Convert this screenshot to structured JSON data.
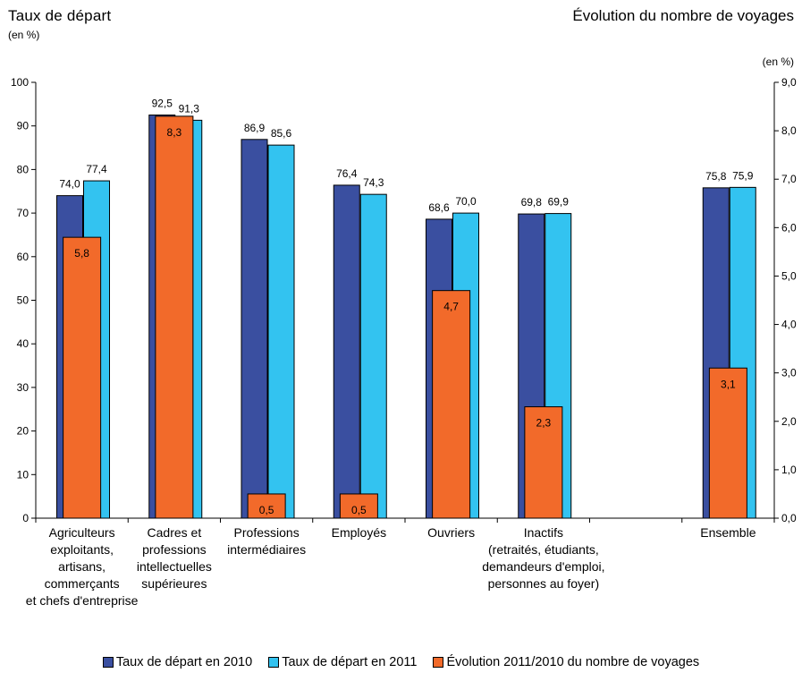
{
  "header": {
    "left_title": "Taux de départ",
    "left_unit": "(en %)",
    "right_title": "Évolution du nombre de voyages",
    "right_unit": "(en %)"
  },
  "colors": {
    "series_2010": "#3a4fa0",
    "series_2011": "#33c3f0",
    "series_evolution": "#f26a2a"
  },
  "chart_data": {
    "type": "bar",
    "categories": [
      [
        "Agriculteurs",
        "exploitants,",
        "artisans,",
        "commerçants",
        "et chefs d'entreprise"
      ],
      [
        "Cadres et",
        "professions",
        "intellectuelles",
        "supérieures"
      ],
      [
        "Professions",
        "intermédiaires"
      ],
      [
        "Employés"
      ],
      [
        "Ouvriers"
      ],
      [
        "Inactifs",
        "(retraités, étudiants,",
        "demandeurs d'emploi,",
        "personnes au foyer)"
      ],
      [
        ""
      ],
      [
        "Ensemble"
      ]
    ],
    "series": [
      {
        "name": "Taux de départ en 2010",
        "axis": "left",
        "values": [
          74.0,
          92.5,
          86.9,
          76.4,
          68.6,
          69.8,
          null,
          75.8
        ],
        "labels": [
          "74,0",
          "92,5",
          "86,9",
          "76,4",
          "68,6",
          "69,8",
          "",
          "75,8"
        ]
      },
      {
        "name": "Taux de départ en 2011",
        "axis": "left",
        "values": [
          77.4,
          91.3,
          85.6,
          74.3,
          70.0,
          69.9,
          null,
          75.9
        ],
        "labels": [
          "77,4",
          "91,3",
          "85,6",
          "74,3",
          "70,0",
          "69,9",
          "",
          "75,9"
        ]
      },
      {
        "name": "Évolution 2011/2010 du nombre de voyages",
        "axis": "right",
        "values": [
          5.8,
          8.3,
          0.5,
          0.5,
          4.7,
          2.3,
          null,
          3.1
        ],
        "labels": [
          "5,8",
          "8,3",
          "0,5",
          "0,5",
          "4,7",
          "2,3",
          "",
          "3,1"
        ]
      }
    ],
    "y_left": {
      "range": [
        0,
        100
      ],
      "ticks": [
        "0",
        "10",
        "20",
        "30",
        "40",
        "50",
        "60",
        "70",
        "80",
        "90",
        "100"
      ]
    },
    "y_right": {
      "range": [
        0,
        9
      ],
      "ticks": [
        "0,0",
        "1,0",
        "2,0",
        "3,0",
        "4,0",
        "5,0",
        "6,0",
        "7,0",
        "8,0",
        "9,0"
      ]
    },
    "grid": false,
    "legend_position": "bottom"
  }
}
